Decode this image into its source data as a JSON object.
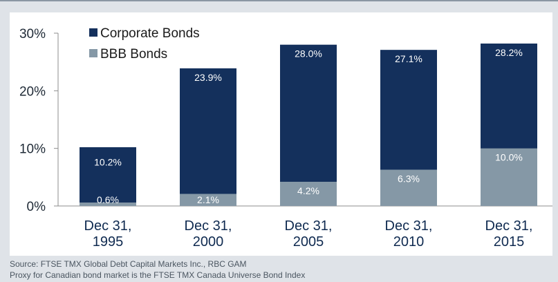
{
  "colors": {
    "corporate": "#14305c",
    "bbb": "#8598a6",
    "background": "#dfe3e8"
  },
  "chart_data": {
    "type": "bar",
    "stacked": false,
    "overlaid": true,
    "categories": [
      [
        "Dec 31,",
        "1995"
      ],
      [
        "Dec 31,",
        "2000"
      ],
      [
        "Dec 31,",
        "2005"
      ],
      [
        "Dec 31,",
        "2010"
      ],
      [
        "Dec 31,",
        "2015"
      ]
    ],
    "series": [
      {
        "name": "Corporate Bonds",
        "values": [
          10.2,
          23.9,
          28.0,
          27.1,
          28.2
        ],
        "labels": [
          "10.2%",
          "23.9%",
          "28.0%",
          "27.1%",
          "28.2%"
        ]
      },
      {
        "name": "BBB Bonds",
        "values": [
          0.6,
          2.1,
          4.2,
          6.3,
          10.0
        ],
        "labels": [
          "0.6%",
          "2.1%",
          "4.2%",
          "6.3%",
          "10.0%"
        ]
      }
    ],
    "ylim": [
      0,
      30
    ],
    "yticks": [
      "0%",
      "10%",
      "20%",
      "30%"
    ],
    "legend_position": "top-left",
    "grid": false
  },
  "footnotes": {
    "source": "Source: FTSE TMX Global Debt Capital Markets Inc., RBC GAM",
    "proxy": "Proxy for Canadian bond market is the FTSE TMX Canada Universe Bond Index"
  }
}
